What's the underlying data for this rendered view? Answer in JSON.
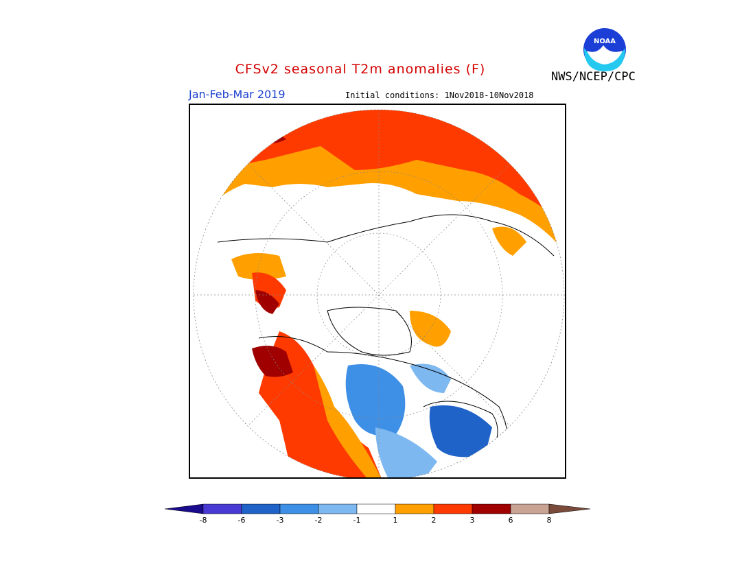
{
  "header": {
    "title": "CFSv2 seasonal T2m anomalies (F)",
    "agency": "NWS/NCEP/CPC",
    "logo_text": "NOAA",
    "season": "Jan-Feb-Mar 2019",
    "initial_conditions": "Initial conditions: 1Nov2018-10Nov2018"
  },
  "colorbar": {
    "ticks": [
      "-8",
      "-6",
      "-3",
      "-2",
      "-1",
      "1",
      "2",
      "3",
      "6",
      "8"
    ],
    "colors": [
      "#1a0a8c",
      "#4a3ad4",
      "#1f62c8",
      "#3e8fe6",
      "#7eb8f0",
      "#ffffff",
      "#ff9f00",
      "#ff3a00",
      "#a00000",
      "#c9a394",
      "#7a4a3a"
    ]
  },
  "map": {
    "projection": "north-polar-stereographic",
    "colors": {
      "warm1": "#ff9f00",
      "warm2": "#ff3a00",
      "warm3": "#a00000",
      "cool1": "#7eb8f0",
      "cool2": "#3e8fe6",
      "cool3": "#1f62c8"
    }
  }
}
